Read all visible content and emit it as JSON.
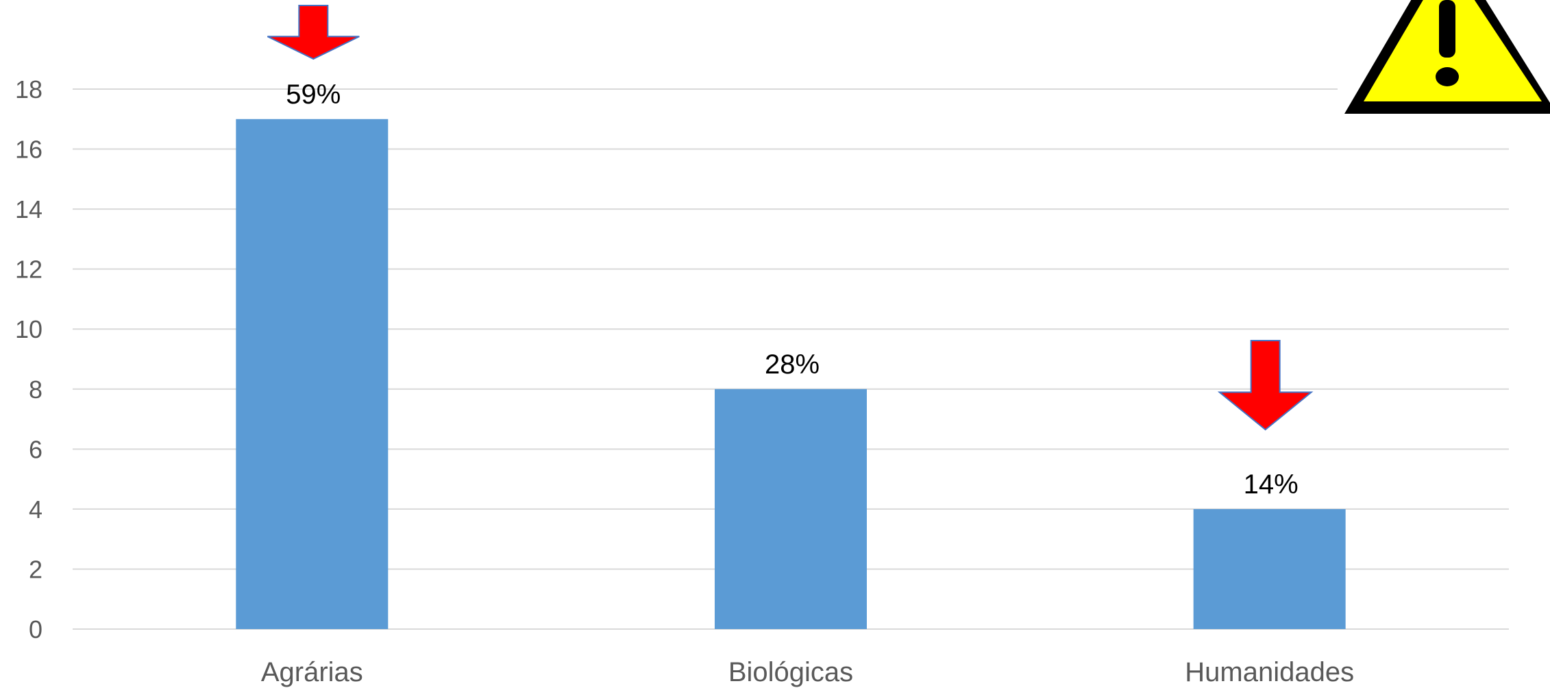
{
  "chart_data": {
    "type": "bar",
    "categories": [
      "Agrárias",
      "Biológicas",
      "Humanidades"
    ],
    "values": [
      17,
      8,
      4
    ],
    "data_labels": [
      "59%",
      "28%",
      "14%"
    ],
    "ylim": [
      0,
      18
    ],
    "y_ticks": [
      "0",
      "2",
      "4",
      "6",
      "8",
      "10",
      "12",
      "14",
      "16",
      "18"
    ],
    "grid": true,
    "legend": "none",
    "colors": {
      "bar": "#5b9bd5",
      "arrow_fill": "#ff0000",
      "arrow_stroke": "#4472c4",
      "warning_fill": "#ffff00",
      "warning_border": "#000000"
    },
    "annotations": [
      {
        "icon": "down-arrow-icon",
        "category": "Agrárias"
      },
      {
        "icon": "down-arrow-icon",
        "category": "Humanidades"
      },
      {
        "icon": "warning-triangle-icon",
        "placement": "top-right"
      }
    ]
  }
}
